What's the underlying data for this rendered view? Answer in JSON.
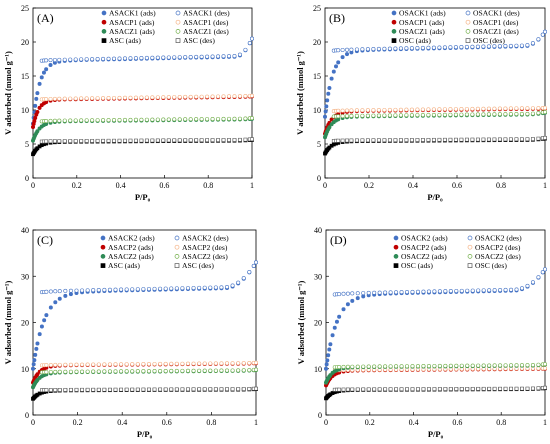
{
  "chart_data": [
    {
      "type": "scatter",
      "panel": "(A)",
      "xlabel": "P/P₀",
      "ylabel": "V adsorbed (mmol g⁻¹)",
      "xlim": [
        0,
        1
      ],
      "ylim": [
        0,
        25
      ],
      "xticks": [
        "0",
        "0.2",
        "0.4",
        "0.6",
        "0.8",
        "1"
      ],
      "yticks": [
        "0",
        "5",
        "10",
        "15",
        "20",
        "25"
      ],
      "series": [
        {
          "name": "ASACK1 (ads)",
          "color": "#4472C4",
          "filled": true,
          "marker": "circle",
          "plateau": 17.2,
          "start": 8.0,
          "k": 0.03,
          "end": 20.5,
          "tail_from": 0.92
        },
        {
          "name": "ASACK1 (des)",
          "color": "#4472C4",
          "filled": false,
          "marker": "circle",
          "plateau": 17.3,
          "start": 17.0,
          "k": 0.03,
          "end": 20.5,
          "tail_from": 0.92
        },
        {
          "name": "ASACP1 (ads)",
          "color": "#C00000",
          "filled": true,
          "marker": "circle",
          "plateau": 11.5,
          "start": 7.5,
          "k": 0.025,
          "end": 12.0,
          "tail_from": 0.9
        },
        {
          "name": "ASACP1 (des)",
          "color": "#F4B183",
          "filled": false,
          "marker": "circle",
          "plateau": 11.6,
          "start": 11.3,
          "k": 0.025,
          "end": 12.1,
          "tail_from": 0.9
        },
        {
          "name": "ASACZ1 (ads)",
          "color": "#2E8B57",
          "filled": true,
          "marker": "circle",
          "plateau": 8.3,
          "start": 5.5,
          "k": 0.03,
          "end": 8.7,
          "tail_from": 0.9
        },
        {
          "name": "ASACZ1 (des)",
          "color": "#70AD47",
          "filled": false,
          "marker": "circle",
          "plateau": 8.4,
          "start": 8.1,
          "k": 0.03,
          "end": 8.8,
          "tail_from": 0.9
        },
        {
          "name": "ASC (ads)",
          "color": "#000000",
          "filled": true,
          "marker": "square",
          "plateau": 5.3,
          "start": 3.5,
          "k": 0.03,
          "end": 5.6,
          "tail_from": 0.9
        },
        {
          "name": "ASC (des)",
          "color": "#595959",
          "filled": false,
          "marker": "square",
          "plateau": 5.4,
          "start": 5.2,
          "k": 0.03,
          "end": 5.7,
          "tail_from": 0.9
        }
      ]
    },
    {
      "type": "scatter",
      "panel": "(B)",
      "xlabel": "P/P₀",
      "ylabel": "V adsorbed (mmol g⁻¹)",
      "xlim": [
        0,
        1
      ],
      "ylim": [
        0,
        25
      ],
      "xticks": [
        "0",
        "0.2",
        "0.4",
        "0.6",
        "0.8",
        "1"
      ],
      "yticks": [
        "0",
        "5",
        "10",
        "15",
        "20",
        "25"
      ],
      "series": [
        {
          "name": "OSACK1 (ads)",
          "color": "#4472C4",
          "filled": true,
          "marker": "circle",
          "plateau": 18.7,
          "start": 9.0,
          "k": 0.035,
          "end": 21.5,
          "tail_from": 0.9
        },
        {
          "name": "OSACK1 (des)",
          "color": "#4472C4",
          "filled": false,
          "marker": "circle",
          "plateau": 18.8,
          "start": 18.5,
          "k": 0.035,
          "end": 21.5,
          "tail_from": 0.9
        },
        {
          "name": "OSACP1 (ads)",
          "color": "#C00000",
          "filled": true,
          "marker": "circle",
          "plateau": 9.8,
          "start": 6.5,
          "k": 0.03,
          "end": 10.2,
          "tail_from": 0.9
        },
        {
          "name": "OSACP1 (des)",
          "color": "#F4B183",
          "filled": false,
          "marker": "circle",
          "plateau": 9.9,
          "start": 9.6,
          "k": 0.03,
          "end": 10.3,
          "tail_from": 0.9
        },
        {
          "name": "OSACZ1 (ads)",
          "color": "#2E8B57",
          "filled": true,
          "marker": "circle",
          "plateau": 9.0,
          "start": 6.0,
          "k": 0.03,
          "end": 9.6,
          "tail_from": 0.9
        },
        {
          "name": "OSACZ1 (des)",
          "color": "#70AD47",
          "filled": false,
          "marker": "circle",
          "plateau": 9.1,
          "start": 8.8,
          "k": 0.03,
          "end": 9.7,
          "tail_from": 0.9
        },
        {
          "name": "OSC (ads)",
          "color": "#000000",
          "filled": true,
          "marker": "square",
          "plateau": 5.4,
          "start": 3.6,
          "k": 0.03,
          "end": 5.8,
          "tail_from": 0.9
        },
        {
          "name": "OSC (des)",
          "color": "#595959",
          "filled": false,
          "marker": "square",
          "plateau": 5.5,
          "start": 5.3,
          "k": 0.03,
          "end": 5.9,
          "tail_from": 0.9
        }
      ]
    },
    {
      "type": "scatter",
      "panel": "(C)",
      "xlabel": "P/P₀",
      "ylabel": "V adsorbed (mmol g⁻¹)",
      "xlim": [
        0,
        1
      ],
      "ylim": [
        0,
        40
      ],
      "xticks": [
        "0",
        "0.2",
        "0.4",
        "0.6",
        "0.8",
        "1"
      ],
      "yticks": [
        "0",
        "10",
        "20",
        "30",
        "40"
      ],
      "series": [
        {
          "name": "ASACK2 (ads)",
          "color": "#4472C4",
          "filled": true,
          "marker": "circle",
          "plateau": 26.5,
          "start": 10.0,
          "k": 0.05,
          "end": 33.0,
          "tail_from": 0.85
        },
        {
          "name": "ASACK2 (des)",
          "color": "#4472C4",
          "filled": false,
          "marker": "circle",
          "plateau": 26.7,
          "start": 26.3,
          "k": 0.05,
          "end": 33.0,
          "tail_from": 0.85
        },
        {
          "name": "ASACP2 (ads)",
          "color": "#C00000",
          "filled": true,
          "marker": "circle",
          "plateau": 10.7,
          "start": 7.0,
          "k": 0.03,
          "end": 11.2,
          "tail_from": 0.9
        },
        {
          "name": "ASACP2 (des)",
          "color": "#F4B183",
          "filled": false,
          "marker": "circle",
          "plateau": 10.8,
          "start": 10.5,
          "k": 0.03,
          "end": 11.3,
          "tail_from": 0.9
        },
        {
          "name": "ASACZ2 (ads)",
          "color": "#2E8B57",
          "filled": true,
          "marker": "circle",
          "plateau": 9.2,
          "start": 6.0,
          "k": 0.03,
          "end": 9.7,
          "tail_from": 0.9
        },
        {
          "name": "ASACZ2 (des)",
          "color": "#70AD47",
          "filled": false,
          "marker": "circle",
          "plateau": 9.3,
          "start": 9.0,
          "k": 0.03,
          "end": 9.8,
          "tail_from": 0.9
        },
        {
          "name": "ASC (ads)",
          "color": "#000000",
          "filled": true,
          "marker": "square",
          "plateau": 5.3,
          "start": 3.5,
          "k": 0.03,
          "end": 5.6,
          "tail_from": 0.9
        },
        {
          "name": "ASC (des)",
          "color": "#595959",
          "filled": false,
          "marker": "square",
          "plateau": 5.4,
          "start": 5.2,
          "k": 0.03,
          "end": 5.7,
          "tail_from": 0.9
        }
      ]
    },
    {
      "type": "scatter",
      "panel": "(D)",
      "xlabel": "P/P₀",
      "ylabel": "V adsorbed (mmol g⁻¹)",
      "xlim": [
        0,
        1
      ],
      "ylim": [
        0,
        40
      ],
      "xticks": [
        "0",
        "0.2",
        "0.4",
        "0.6",
        "0.8",
        "1"
      ],
      "yticks": [
        "0",
        "10",
        "20",
        "30",
        "40"
      ],
      "series": [
        {
          "name": "OSACK2 (ads)",
          "color": "#4472C4",
          "filled": true,
          "marker": "circle",
          "plateau": 26.0,
          "start": 10.0,
          "k": 0.05,
          "end": 31.5,
          "tail_from": 0.85
        },
        {
          "name": "OSACK2 (des)",
          "color": "#4472C4",
          "filled": false,
          "marker": "circle",
          "plateau": 26.2,
          "start": 25.8,
          "k": 0.05,
          "end": 31.5,
          "tail_from": 0.85
        },
        {
          "name": "OSACP2 (ads)",
          "color": "#C00000",
          "filled": true,
          "marker": "circle",
          "plateau": 9.6,
          "start": 6.4,
          "k": 0.03,
          "end": 10.0,
          "tail_from": 0.9
        },
        {
          "name": "OSACP2 (des)",
          "color": "#F4B183",
          "filled": false,
          "marker": "circle",
          "plateau": 9.7,
          "start": 9.4,
          "k": 0.03,
          "end": 10.1,
          "tail_from": 0.9
        },
        {
          "name": "OSACZ2 (ads)",
          "color": "#2E8B57",
          "filled": true,
          "marker": "circle",
          "plateau": 10.3,
          "start": 7.0,
          "k": 0.03,
          "end": 10.9,
          "tail_from": 0.9
        },
        {
          "name": "OSACZ2 (des)",
          "color": "#70AD47",
          "filled": false,
          "marker": "circle",
          "plateau": 10.4,
          "start": 10.1,
          "k": 0.03,
          "end": 11.0,
          "tail_from": 0.9
        },
        {
          "name": "OSC (ads)",
          "color": "#000000",
          "filled": true,
          "marker": "square",
          "plateau": 5.4,
          "start": 3.6,
          "k": 0.03,
          "end": 5.8,
          "tail_from": 0.9
        },
        {
          "name": "OSC (des)",
          "color": "#595959",
          "filled": false,
          "marker": "square",
          "plateau": 5.5,
          "start": 5.3,
          "k": 0.03,
          "end": 5.9,
          "tail_from": 0.9
        }
      ]
    }
  ]
}
